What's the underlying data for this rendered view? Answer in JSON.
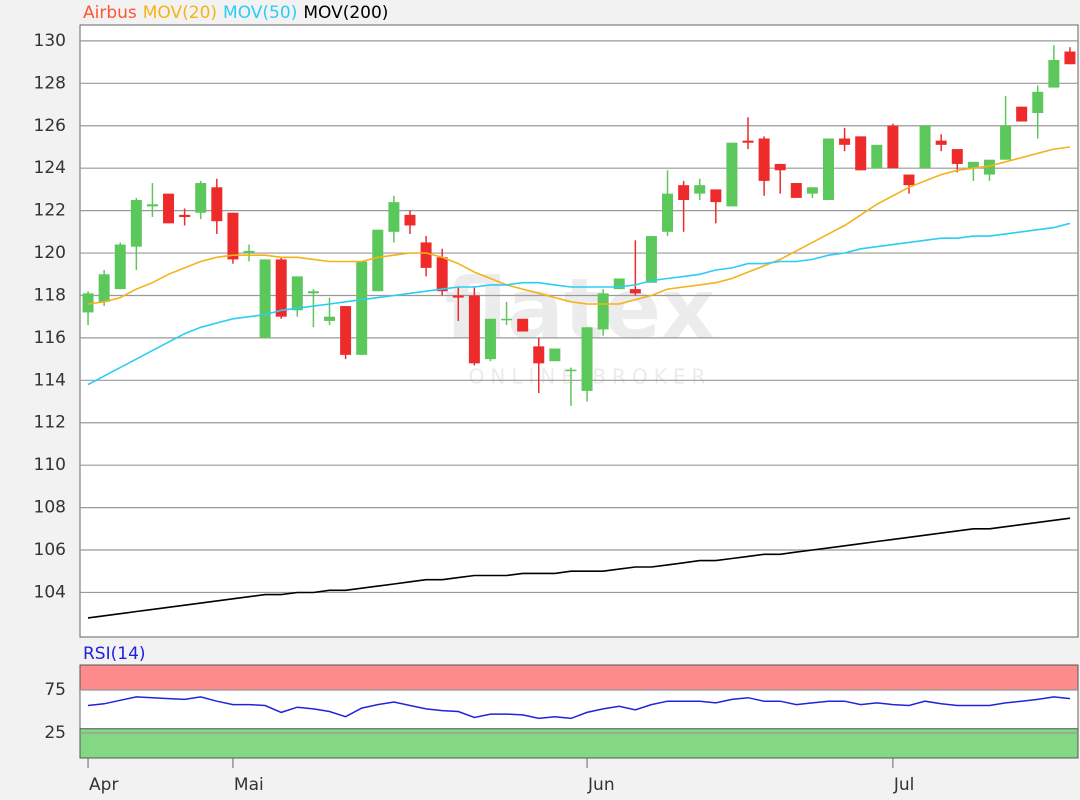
{
  "chart_data": [
    {
      "type": "candlestick",
      "name": "Airbus",
      "color": "#ff5533",
      "up_color": "#5cc85c",
      "down_color": "#ee2b2b",
      "categories": [
        "Apr",
        null,
        null,
        null,
        null,
        null,
        null,
        null,
        null,
        "Mai",
        null,
        null,
        null,
        null,
        null,
        null,
        null,
        null,
        null,
        null,
        null,
        null,
        null,
        null,
        null,
        null,
        null,
        null,
        null,
        null,
        null,
        "Jun",
        null,
        null,
        null,
        null,
        null,
        null,
        null,
        null,
        null,
        null,
        null,
        null,
        null,
        null,
        null,
        null,
        null,
        null,
        "Jul",
        null,
        null,
        null,
        null,
        null,
        null,
        null,
        null,
        null,
        null,
        null
      ],
      "open": [
        117.2,
        117.7,
        118.3,
        120.3,
        122.2,
        122.8,
        121.8,
        121.9,
        123.1,
        121.9,
        120.0,
        116.0,
        119.7,
        117.3,
        118.1,
        116.8,
        117.5,
        115.2,
        118.2,
        121.0,
        121.8,
        120.5,
        119.8,
        118.0,
        118.0,
        115.0,
        116.9,
        116.9,
        115.6,
        114.9,
        114.5,
        113.5,
        116.4,
        118.3,
        118.3,
        118.6,
        121.0,
        123.2,
        122.8,
        123.0,
        122.2,
        125.3,
        125.4,
        124.2,
        123.3,
        122.8,
        122.5,
        125.4,
        125.5,
        124.0,
        126.0,
        123.7,
        124.0,
        125.3,
        124.9,
        124.0,
        123.7,
        124.4,
        126.9,
        126.6,
        127.8,
        129.5
      ],
      "high": [
        118.2,
        119.2,
        120.5,
        122.6,
        123.3,
        122.8,
        122.1,
        123.4,
        123.5,
        121.9,
        120.4,
        119.7,
        119.8,
        118.9,
        118.3,
        117.9,
        117.5,
        119.6,
        121.1,
        122.7,
        122.0,
        120.8,
        120.2,
        118.4,
        118.4,
        116.9,
        117.7,
        116.9,
        116.0,
        115.5,
        114.6,
        116.5,
        118.3,
        118.8,
        120.6,
        120.8,
        123.9,
        123.4,
        123.5,
        123.0,
        125.2,
        126.4,
        125.5,
        124.2,
        123.3,
        123.1,
        125.4,
        125.9,
        125.5,
        125.1,
        126.1,
        123.7,
        126.0,
        125.6,
        124.9,
        124.3,
        124.4,
        127.4,
        126.9,
        127.9,
        129.8,
        129.7
      ],
      "low": [
        116.6,
        117.5,
        118.3,
        119.2,
        121.7,
        121.4,
        121.3,
        121.6,
        120.9,
        119.5,
        119.6,
        116.0,
        116.9,
        117.0,
        116.5,
        116.6,
        115.0,
        115.2,
        118.2,
        120.5,
        120.9,
        118.9,
        118.0,
        116.8,
        114.7,
        114.9,
        116.6,
        116.3,
        113.4,
        114.9,
        112.8,
        113.0,
        116.1,
        118.3,
        118.0,
        118.6,
        120.8,
        121.0,
        122.5,
        121.4,
        122.2,
        124.9,
        122.7,
        122.8,
        122.6,
        122.6,
        122.5,
        124.8,
        123.9,
        124.0,
        124.0,
        122.8,
        124.0,
        124.8,
        123.8,
        123.4,
        123.4,
        124.4,
        126.2,
        125.4,
        127.8,
        128.9
      ],
      "close": [
        118.1,
        119.0,
        120.4,
        122.5,
        122.3,
        121.4,
        121.7,
        123.3,
        121.5,
        119.7,
        120.1,
        119.7,
        117.0,
        118.9,
        118.2,
        117.0,
        115.2,
        119.6,
        121.1,
        122.4,
        121.3,
        119.3,
        118.2,
        117.9,
        114.8,
        116.9,
        116.9,
        116.3,
        114.8,
        115.5,
        114.5,
        116.5,
        118.1,
        118.8,
        118.1,
        120.8,
        122.8,
        122.5,
        123.2,
        122.4,
        125.2,
        125.2,
        123.4,
        123.9,
        122.6,
        123.1,
        125.4,
        125.1,
        123.9,
        125.1,
        124.0,
        123.2,
        126.0,
        125.1,
        124.2,
        124.3,
        124.4,
        126.0,
        126.2,
        127.6,
        129.1,
        128.9
      ],
      "series": [
        {
          "name": "MOV(20)",
          "color": "#f5b21b",
          "values": [
            117.6,
            117.7,
            117.9,
            118.3,
            118.6,
            119.0,
            119.3,
            119.6,
            119.8,
            119.9,
            119.9,
            119.9,
            119.8,
            119.8,
            119.7,
            119.6,
            119.6,
            119.6,
            119.8,
            119.9,
            120.0,
            120.0,
            119.8,
            119.5,
            119.1,
            118.8,
            118.5,
            118.3,
            118.1,
            117.9,
            117.7,
            117.6,
            117.6,
            117.6,
            117.8,
            118.0,
            118.3,
            118.4,
            118.5,
            118.6,
            118.8,
            119.1,
            119.4,
            119.7,
            120.1,
            120.5,
            120.9,
            121.3,
            121.8,
            122.3,
            122.7,
            123.1,
            123.4,
            123.7,
            123.9,
            124.0,
            124.1,
            124.3,
            124.5,
            124.7,
            124.9,
            125.0
          ]
        },
        {
          "name": "MOV(50)",
          "color": "#2ccdf5",
          "values": [
            113.8,
            114.2,
            114.6,
            115.0,
            115.4,
            115.8,
            116.2,
            116.5,
            116.7,
            116.9,
            117.0,
            117.1,
            117.3,
            117.4,
            117.5,
            117.6,
            117.7,
            117.8,
            117.9,
            118.0,
            118.1,
            118.2,
            118.3,
            118.4,
            118.4,
            118.5,
            118.5,
            118.6,
            118.6,
            118.5,
            118.4,
            118.4,
            118.4,
            118.4,
            118.5,
            118.7,
            118.8,
            118.9,
            119.0,
            119.2,
            119.3,
            119.5,
            119.5,
            119.6,
            119.6,
            119.7,
            119.9,
            120.0,
            120.2,
            120.3,
            120.4,
            120.5,
            120.6,
            120.7,
            120.7,
            120.8,
            120.8,
            120.9,
            121.0,
            121.1,
            121.2,
            121.4
          ]
        },
        {
          "name": "MOV(200)",
          "color": "#000000",
          "values": [
            102.8,
            102.9,
            103.0,
            103.1,
            103.2,
            103.3,
            103.4,
            103.5,
            103.6,
            103.7,
            103.8,
            103.9,
            103.9,
            104.0,
            104.0,
            104.1,
            104.1,
            104.2,
            104.3,
            104.4,
            104.5,
            104.6,
            104.6,
            104.7,
            104.8,
            104.8,
            104.8,
            104.9,
            104.9,
            104.9,
            105.0,
            105.0,
            105.0,
            105.1,
            105.2,
            105.2,
            105.3,
            105.4,
            105.5,
            105.5,
            105.6,
            105.7,
            105.8,
            105.8,
            105.9,
            106.0,
            106.1,
            106.2,
            106.3,
            106.4,
            106.5,
            106.6,
            106.7,
            106.8,
            106.9,
            107.0,
            107.0,
            107.1,
            107.2,
            107.3,
            107.4,
            107.5
          ]
        }
      ],
      "ylim": [
        101.9,
        130.75
      ],
      "yticks": [
        104,
        106,
        108,
        110,
        112,
        114,
        116,
        118,
        120,
        122,
        124,
        126,
        128,
        130
      ],
      "grid": true
    },
    {
      "type": "line",
      "series": [
        {
          "name": "RSI(14)",
          "color": "#2222dd",
          "values": [
            57,
            59,
            63,
            67,
            66,
            65,
            64,
            67,
            62,
            58,
            58,
            57,
            49,
            55,
            53,
            50,
            44,
            54,
            58,
            61,
            57,
            53,
            51,
            50,
            43,
            47,
            47,
            46,
            42,
            44,
            42,
            49,
            53,
            56,
            52,
            58,
            62,
            62,
            62,
            60,
            64,
            66,
            62,
            62,
            58,
            60,
            62,
            62,
            58,
            60,
            58,
            57,
            62,
            59,
            57,
            57,
            57,
            60,
            62,
            64,
            67,
            65
          ]
        }
      ],
      "ylim": [
        -4,
        104
      ],
      "yticks": [
        25,
        75
      ],
      "grid": true,
      "bands": [
        {
          "from": 75,
          "to": 104,
          "color": "#ff8c8c"
        },
        {
          "from": -4,
          "to": 30,
          "color": "#84d884"
        }
      ]
    }
  ],
  "watermark": {
    "brand": "flatex",
    "tagline": "ONLINE BROKER"
  }
}
